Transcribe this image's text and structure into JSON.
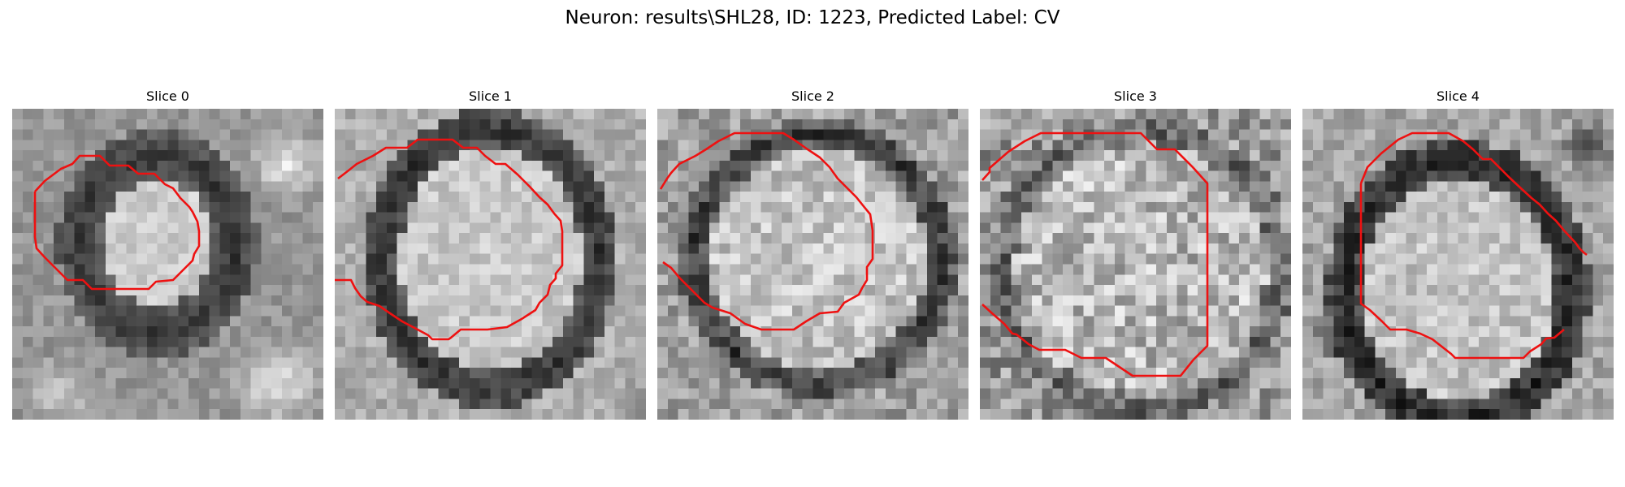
{
  "figure": {
    "title": "Neuron: results\\SHL28, ID: 1223, Predicted Label: CV",
    "contour_color": "#ee1111",
    "colormap": "gray",
    "slices": [
      {
        "title": "Slice 0"
      },
      {
        "title": "Slice 1"
      },
      {
        "title": "Slice 2"
      },
      {
        "title": "Slice 3"
      },
      {
        "title": "Slice 4"
      }
    ]
  }
}
